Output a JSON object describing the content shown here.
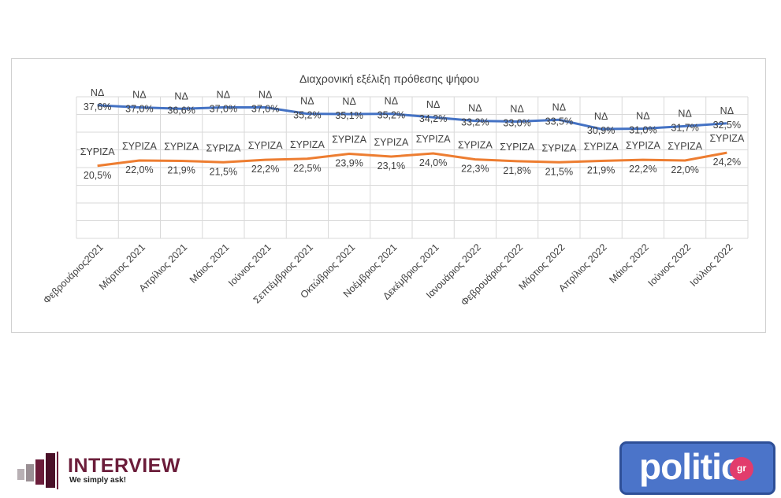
{
  "chart_data": {
    "type": "line",
    "title": "Διαχρονική εξέλιξη πρόθεσης ψήφου",
    "categories": [
      "Φεβρουάριος2021",
      "Μάρτιος 2021",
      "Απρίλιος 2021",
      "Μάιος 2021",
      "Ιούνιος 2021",
      "Σεπτέμβριος 2021",
      "Οκτώβριος 2021",
      "Νοέμβριος 2021",
      "Δεκέμβριος 2021",
      "Ιανουάριος 2022",
      "Φεβρουάριος 2022",
      "Μάρτιος 2022",
      "Απρίλιος 2022",
      "Μάιος 2022",
      "Ιούνιος 2022",
      "Ιούλιος 2022"
    ],
    "series": [
      {
        "name": "ΝΔ",
        "color": "#4472c4",
        "values": [
          37.6,
          37.0,
          36.6,
          37.0,
          37.0,
          35.2,
          35.1,
          35.2,
          34.2,
          33.2,
          33.0,
          33.5,
          30.9,
          31.0,
          31.7,
          32.5
        ],
        "labels": [
          "37,6%",
          "37,0%",
          "36,6%",
          "37,0%",
          "37,0%",
          "35,2%",
          "35,1%",
          "35,2%",
          "34,2%",
          "33,2%",
          "33,0%",
          "33,5%",
          "30,9%",
          "31,0%",
          "31,7%",
          "32,5%"
        ]
      },
      {
        "name": "ΣΥΡΙΖΑ",
        "color": "#ed7d31",
        "values": [
          20.5,
          22.0,
          21.9,
          21.5,
          22.2,
          22.5,
          23.9,
          23.1,
          24.0,
          22.3,
          21.8,
          21.5,
          21.9,
          22.2,
          22.0,
          24.2
        ],
        "labels": [
          "20,5%",
          "22,0%",
          "21,9%",
          "21,5%",
          "22,2%",
          "22,5%",
          "23,9%",
          "23,1%",
          "24,0%",
          "22,3%",
          "21,8%",
          "21,5%",
          "21,9%",
          "22,2%",
          "22,0%",
          "24,2%"
        ]
      }
    ],
    "grid": true,
    "legend": "none"
  },
  "logos": {
    "interview_name": "INTERVIEW",
    "interview_tagline": "We simply ask!",
    "politic_name": "politic",
    "politic_suffix": "gr"
  }
}
